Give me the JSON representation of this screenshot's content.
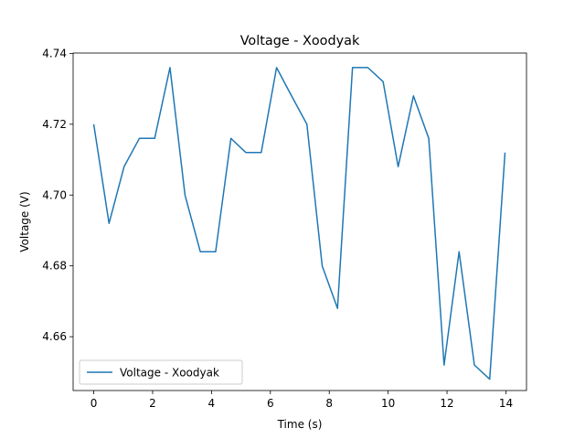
{
  "chart_data": {
    "type": "line",
    "title": "Voltage - Xoodyak",
    "xlabel": "Time (s)",
    "ylabel": "Voltage (V)",
    "xlim": [
      -0.7,
      14.7
    ],
    "ylim": [
      4.6448,
      4.7401
    ],
    "xticks": [
      0,
      2,
      4,
      6,
      8,
      10,
      12,
      14
    ],
    "yticks": [
      4.66,
      4.68,
      4.7,
      4.72,
      4.74
    ],
    "ytick_labels": [
      "4.66",
      "4.68",
      "4.70",
      "4.72",
      "4.74"
    ],
    "grid": false,
    "legend_position": "lower-left",
    "line_color": "#1f77b4",
    "series": [
      {
        "name": "Voltage - Xoodyak",
        "x": [
          0.0,
          0.52,
          1.03,
          1.55,
          2.07,
          2.59,
          3.1,
          3.62,
          4.14,
          4.66,
          5.17,
          5.69,
          6.21,
          6.72,
          7.24,
          7.76,
          8.28,
          8.79,
          9.31,
          9.83,
          10.34,
          10.86,
          11.38,
          11.9,
          12.41,
          12.93,
          13.45,
          13.97
        ],
        "y": [
          4.72,
          4.692,
          4.708,
          4.716,
          4.716,
          4.736,
          4.7,
          4.684,
          4.684,
          4.716,
          4.712,
          4.712,
          4.736,
          4.728,
          4.72,
          4.68,
          4.668,
          4.736,
          4.736,
          4.732,
          4.708,
          4.728,
          4.716,
          4.652,
          4.684,
          4.652,
          4.648,
          4.712
        ]
      }
    ]
  }
}
